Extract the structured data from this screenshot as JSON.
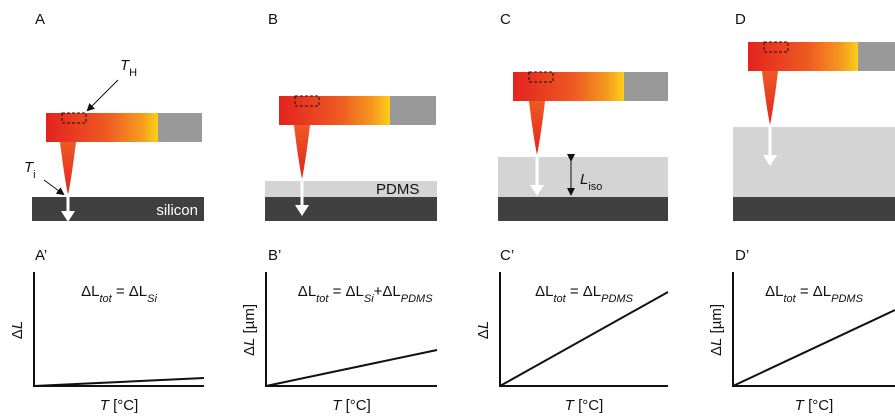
{
  "panels": [
    {
      "label": "A",
      "annotations": {
        "th": [
          "T",
          "H"
        ],
        "ti": [
          "T",
          "i"
        ],
        "substrate": "silicon"
      }
    },
    {
      "label": "B",
      "annotations": {
        "layer": "PDMS"
      }
    },
    {
      "label": "C",
      "annotations": {
        "thickness": [
          "L",
          "iso"
        ]
      }
    },
    {
      "label": "D"
    }
  ],
  "plots": [
    {
      "label": "A’",
      "equation": [
        "ΔL",
        "tot",
        " = ΔL",
        "Si"
      ],
      "y_label": [
        "Δ",
        "L"
      ],
      "x_label": [
        "T",
        " [°C]"
      ]
    },
    {
      "label": "B’",
      "equation": [
        "ΔL",
        "tot",
        " = ΔL",
        "Si",
        "+ΔL",
        "PDMS"
      ],
      "y_label": [
        "Δ",
        "L",
        " [µm]"
      ],
      "x_label": [
        "T",
        " [°C]"
      ]
    },
    {
      "label": "C’",
      "equation": [
        "ΔL",
        "tot",
        " = ΔL",
        "PDMS"
      ],
      "y_label": [
        "Δ",
        "L"
      ],
      "x_label": [
        "T",
        " [°C]"
      ]
    },
    {
      "label": "D’",
      "equation": [
        "ΔL",
        "tot",
        " = ΔL",
        "PDMS"
      ],
      "y_label": [
        "Δ",
        "L",
        " [µm]"
      ],
      "x_label": [
        "T",
        " [°C]"
      ]
    }
  ]
}
